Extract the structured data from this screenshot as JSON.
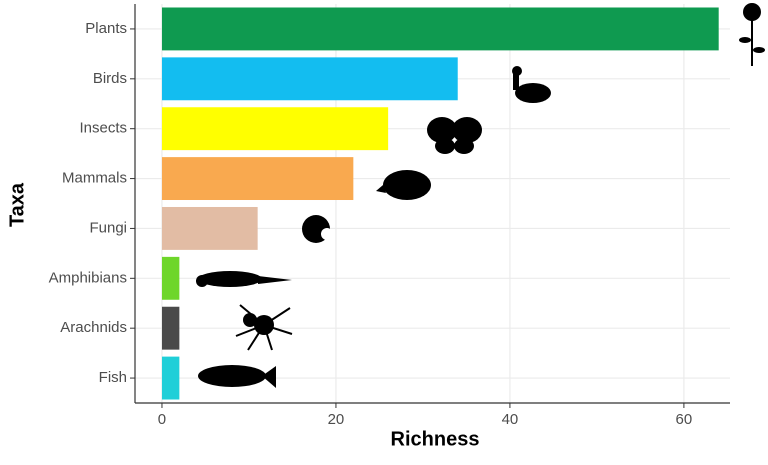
{
  "chart_data": {
    "type": "bar",
    "orientation": "horizontal",
    "x_label": "Richness",
    "y_label": "Taxa",
    "categories": [
      "Plants",
      "Birds",
      "Insects",
      "Mammals",
      "Fungi",
      "Amphibians",
      "Arachnids",
      "Fish"
    ],
    "values": [
      64,
      34,
      26,
      22,
      11,
      2,
      2,
      2
    ],
    "colors": [
      "#0f9a50",
      "#13bdf0",
      "#ffff00",
      "#f9a94f",
      "#e2bca4",
      "#6ed62a",
      "#4a4a4a",
      "#1fcfd8"
    ],
    "xlim": [
      -3.1,
      65.3
    ],
    "xticks": [
      0,
      20,
      40,
      60
    ],
    "grid": true
  }
}
